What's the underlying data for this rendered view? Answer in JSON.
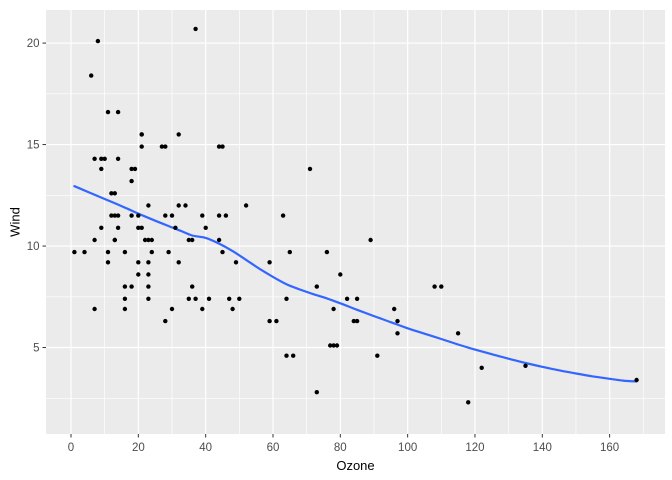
{
  "chart_data": {
    "type": "scatter",
    "title": "",
    "xlabel": "Ozone",
    "ylabel": "Wind",
    "x_ticks": [
      0,
      20,
      40,
      60,
      80,
      100,
      120,
      140,
      160
    ],
    "y_ticks": [
      5,
      10,
      15,
      20
    ],
    "xlim": [
      -7.43,
      176.45
    ],
    "ylim": [
      0.74,
      21.63
    ],
    "grid": "major-and-minor",
    "legend": "none",
    "theme": "ggplot-gray",
    "points": [
      [
        41,
        7.4
      ],
      [
        36,
        8
      ],
      [
        12,
        12.6
      ],
      [
        18,
        11.5
      ],
      [
        28,
        14.9
      ],
      [
        23,
        8.6
      ],
      [
        19,
        13.8
      ],
      [
        8,
        20.1
      ],
      [
        7,
        6.9
      ],
      [
        16,
        9.7
      ],
      [
        11,
        9.2
      ],
      [
        14,
        10.9
      ],
      [
        18,
        13.2
      ],
      [
        14,
        11.5
      ],
      [
        34,
        12
      ],
      [
        6,
        18.4
      ],
      [
        30,
        11.5
      ],
      [
        11,
        9.7
      ],
      [
        1,
        9.7
      ],
      [
        11,
        16.6
      ],
      [
        4,
        9.7
      ],
      [
        32,
        12
      ],
      [
        23,
        12
      ],
      [
        45,
        14.9
      ],
      [
        115,
        5.7
      ],
      [
        37,
        7.4
      ],
      [
        29,
        9.7
      ],
      [
        71,
        13.8
      ],
      [
        39,
        11.5
      ],
      [
        23,
        8
      ],
      [
        21,
        14.9
      ],
      [
        37,
        20.7
      ],
      [
        20,
        9.2
      ],
      [
        12,
        11.5
      ],
      [
        13,
        10.3
      ],
      [
        135,
        4.1
      ],
      [
        49,
        9.2
      ],
      [
        32,
        9.2
      ],
      [
        64,
        4.6
      ],
      [
        40,
        10.9
      ],
      [
        77,
        5.1
      ],
      [
        97,
        6.3
      ],
      [
        97,
        5.7
      ],
      [
        85,
        7.4
      ],
      [
        10,
        14.3
      ],
      [
        27,
        14.9
      ],
      [
        7,
        14.3
      ],
      [
        48,
        6.9
      ],
      [
        35,
        10.3
      ],
      [
        61,
        6.3
      ],
      [
        79,
        5.1
      ],
      [
        63,
        11.5
      ],
      [
        16,
        6.9
      ],
      [
        80,
        8.6
      ],
      [
        108,
        8
      ],
      [
        20,
        8.6
      ],
      [
        52,
        12
      ],
      [
        82,
        7.4
      ],
      [
        50,
        7.4
      ],
      [
        64,
        7.4
      ],
      [
        59,
        9.2
      ],
      [
        39,
        6.9
      ],
      [
        9,
        13.8
      ],
      [
        16,
        7.4
      ],
      [
        78,
        6.9
      ],
      [
        35,
        7.4
      ],
      [
        66,
        4.6
      ],
      [
        122,
        4
      ],
      [
        89,
        10.3
      ],
      [
        110,
        8
      ],
      [
        44,
        11.5
      ],
      [
        28,
        11.5
      ],
      [
        65,
        9.7
      ],
      [
        22,
        10.3
      ],
      [
        59,
        6.3
      ],
      [
        23,
        7.4
      ],
      [
        31,
        10.9
      ],
      [
        44,
        10.3
      ],
      [
        21,
        15.5
      ],
      [
        9,
        14.3
      ],
      [
        45,
        9.7
      ],
      [
        168,
        3.4
      ],
      [
        73,
        8
      ],
      [
        76,
        9.7
      ],
      [
        118,
        2.3
      ],
      [
        84,
        6.3
      ],
      [
        85,
        6.3
      ],
      [
        96,
        6.9
      ],
      [
        78,
        5.1
      ],
      [
        73,
        2.8
      ],
      [
        91,
        4.6
      ],
      [
        47,
        7.4
      ],
      [
        32,
        15.5
      ],
      [
        20,
        10.9
      ],
      [
        23,
        10.3
      ],
      [
        21,
        10.9
      ],
      [
        24,
        9.7
      ],
      [
        44,
        14.9
      ],
      [
        21,
        15.5
      ],
      [
        28,
        6.3
      ],
      [
        9,
        10.9
      ],
      [
        13,
        11.5
      ],
      [
        46,
        11.5
      ],
      [
        18,
        13.8
      ],
      [
        13,
        10.3
      ],
      [
        24,
        10.3
      ],
      [
        16,
        8
      ],
      [
        13,
        12.6
      ],
      [
        23,
        9.2
      ],
      [
        36,
        10.3
      ],
      [
        7,
        10.3
      ],
      [
        14,
        16.6
      ],
      [
        30,
        6.9
      ],
      [
        14,
        14.3
      ],
      [
        18,
        8
      ],
      [
        20,
        11.5
      ]
    ],
    "smooth_line": [
      [
        1,
        12.95
      ],
      [
        5,
        12.67
      ],
      [
        10,
        12.32
      ],
      [
        15,
        11.97
      ],
      [
        20,
        11.6
      ],
      [
        25,
        11.25
      ],
      [
        30,
        10.92
      ],
      [
        33,
        10.72
      ],
      [
        36,
        10.52
      ],
      [
        40,
        10.4
      ],
      [
        44,
        10.12
      ],
      [
        48,
        9.75
      ],
      [
        52,
        9.32
      ],
      [
        56,
        8.88
      ],
      [
        60,
        8.48
      ],
      [
        64,
        8.12
      ],
      [
        68,
        7.86
      ],
      [
        72,
        7.63
      ],
      [
        76,
        7.42
      ],
      [
        80,
        7.18
      ],
      [
        85,
        6.86
      ],
      [
        90,
        6.55
      ],
      [
        95,
        6.25
      ],
      [
        100,
        5.95
      ],
      [
        105,
        5.68
      ],
      [
        110,
        5.42
      ],
      [
        115,
        5.15
      ],
      [
        120,
        4.9
      ],
      [
        125,
        4.67
      ],
      [
        130,
        4.45
      ],
      [
        135,
        4.24
      ],
      [
        140,
        4.05
      ],
      [
        145,
        3.88
      ],
      [
        150,
        3.72
      ],
      [
        155,
        3.58
      ],
      [
        160,
        3.46
      ],
      [
        164,
        3.37
      ],
      [
        168,
        3.33
      ]
    ],
    "colors": {
      "figure_background": "#FFFFFF",
      "panel_background": "#EBEBEB",
      "gridline": "#FFFFFF",
      "point": "#000000",
      "smooth_line": "#3366FF",
      "tick_mark": "#333333",
      "tick_label": "#4D4D4D",
      "axis_title": "#000000"
    }
  }
}
